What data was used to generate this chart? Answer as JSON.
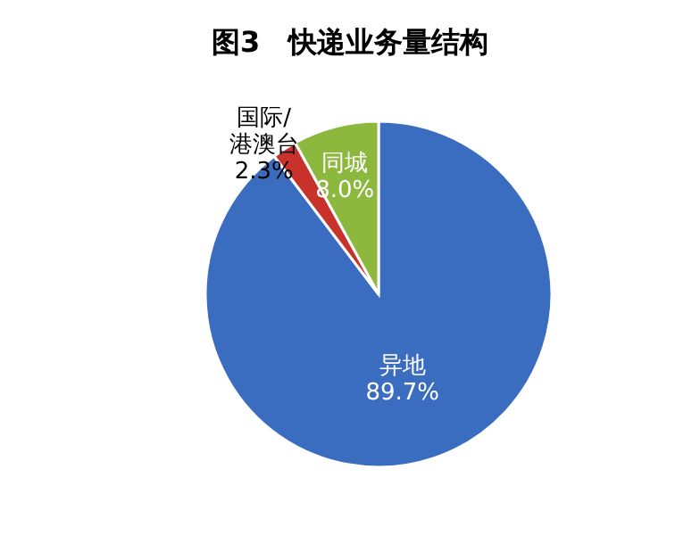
{
  "chart_data": {
    "type": "pie",
    "title": "图3　快递业务量结构",
    "categories": [
      "异地",
      "国际/\n港澳台",
      "同城"
    ],
    "values": [
      89.7,
      2.3,
      8.0
    ],
    "colors": [
      "#3a6dbf",
      "#c8322b",
      "#8cb83e"
    ],
    "value_labels": [
      "89.7%",
      "2.3%",
      "8.0%"
    ]
  }
}
